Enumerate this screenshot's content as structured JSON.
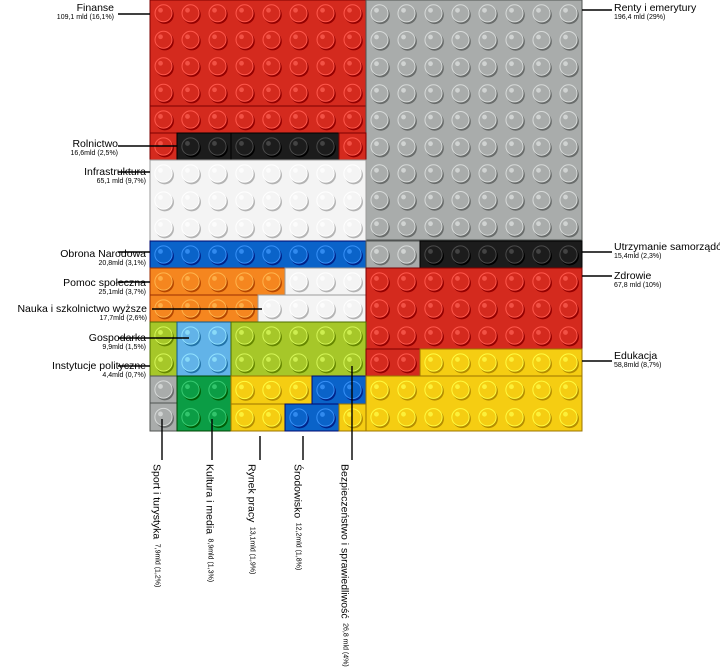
{
  "categories": [
    {
      "id": "finanse",
      "name": "Finanse",
      "value": "109,1 mld (16,1%)",
      "color": "#d42a1e"
    },
    {
      "id": "renty",
      "name": "Renty i emerytury",
      "value": "196,4 mld (29%)",
      "color": "#a9acab"
    },
    {
      "id": "rolnictwo",
      "name": "Rolnictwo",
      "value": "16,6mld (2,5%)",
      "color": "#1c1c1c"
    },
    {
      "id": "infrastruktura",
      "name": "Infrastruktura",
      "value": "65,1 mld (9,7%)",
      "color": "#f4f4f4"
    },
    {
      "id": "obrona",
      "name": "Obrona Narodowa",
      "value": "20,8mld (3,1%)",
      "color": "#0a63c9"
    },
    {
      "id": "samorzady",
      "name": "Utrzymanie samorządów",
      "value": "15,4mld (2,3%)",
      "color": "#1c1c1c"
    },
    {
      "id": "pomoc",
      "name": "Pomoc społeczna",
      "value": "25,1mld (3,7%)",
      "color": "#f5861f"
    },
    {
      "id": "zdrowie",
      "name": "Zdrowie",
      "value": "67,8 mld (10%)",
      "color": "#d42a1e"
    },
    {
      "id": "nauka",
      "name": "Nauka i szkolnictwo wyższe",
      "value": "17,7mld (2,6%)",
      "color": "#f4f4f4"
    },
    {
      "id": "gospodarka",
      "name": "Gospodarka",
      "value": "9,9mld (1,5%)",
      "color": "#62b3e8"
    },
    {
      "id": "edukacja",
      "name": "Edukacja",
      "value": "58,8mld (8,7%)",
      "color": "#f5cd12"
    },
    {
      "id": "instytucje",
      "name": "Instytucje polityczne",
      "value": "4,4mld (0,7%)",
      "color": "#a6c729"
    },
    {
      "id": "sport",
      "name": "Sport i turystyka",
      "value": "7,9mld (1,2%)",
      "color": "#a9acab"
    },
    {
      "id": "kultura",
      "name": "Kultura i media",
      "value": "8,9mld (1,3%)",
      "color": "#0b9d45"
    },
    {
      "id": "rynek",
      "name": "Rynek pracy",
      "value": "13,1mld (1,9%)",
      "color": "#f5cd12"
    },
    {
      "id": "srodowisko",
      "name": "Środowisko",
      "value": "12,2mld (1,8%)",
      "color": "#0a63c9"
    },
    {
      "id": "bezpieczenstwo",
      "name": "Bezpieczeństwo i sprawiedliwość",
      "value": "26,8 mld (4%)",
      "color": "#f5cd12"
    }
  ]
}
